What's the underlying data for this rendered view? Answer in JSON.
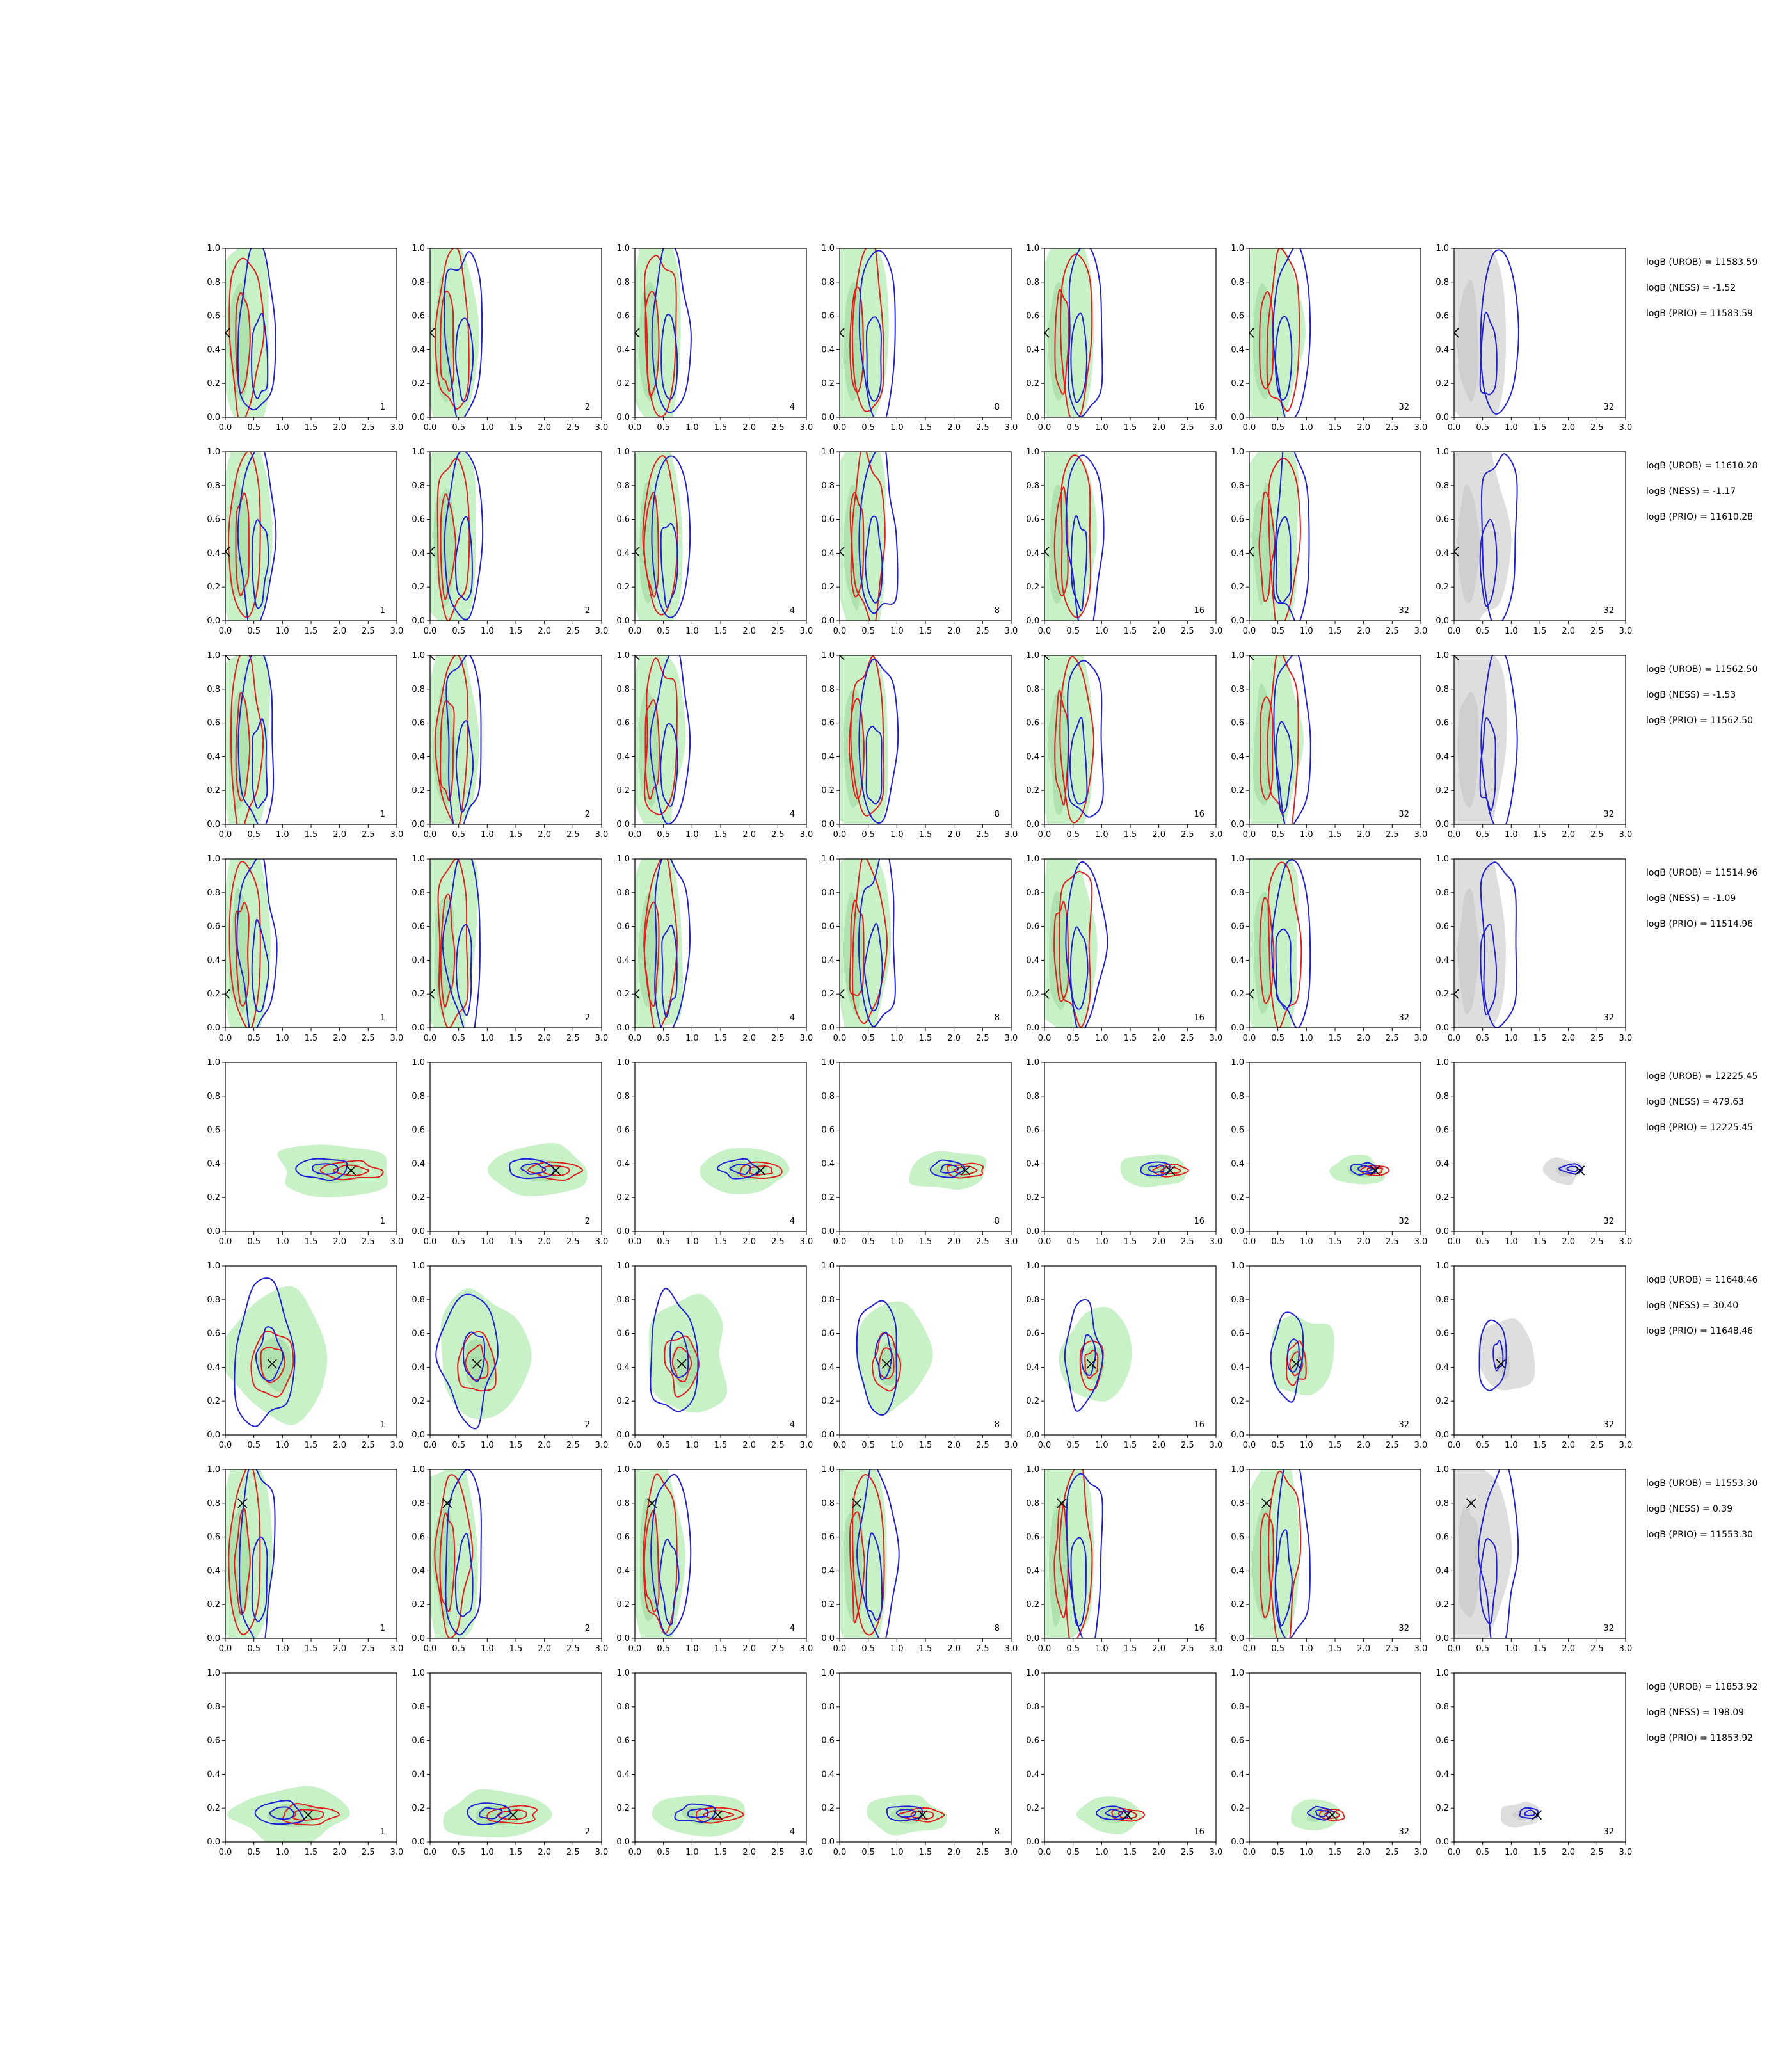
{
  "chart_data": {
    "type": "contour-grid",
    "x_ticks": [
      "0.0",
      "0.5",
      "1.0",
      "1.5",
      "2.0",
      "2.5",
      "3.0"
    ],
    "y_ticks": [
      "0.0",
      "0.2",
      "0.4",
      "0.6",
      "0.8",
      "1.0"
    ],
    "xlim": [
      0,
      3
    ],
    "ylim": [
      0,
      1
    ],
    "column_labels": [
      "1",
      "2",
      "4",
      "8",
      "16",
      "32",
      "32"
    ],
    "colors": {
      "red_contour": "#e0201c",
      "blue_contour": "#1f1fd6",
      "green_fill": "#b7ecb6",
      "green_fill_inner": "#9fd89e",
      "grey_fill": "#d3d3d3",
      "marker": "#000000"
    },
    "rows": [
      {
        "truth": [
          0.0,
          0.5
        ],
        "shape": "broad",
        "stats": [
          "logB (UROB) = 11583.59",
          "logB (NESS) = -1.52",
          "logB (PRIO) = 11583.59"
        ]
      },
      {
        "truth": [
          0.0,
          0.41
        ],
        "shape": "broad",
        "stats": [
          "logB (UROB) = 11610.28",
          "logB (NESS) = -1.17",
          "logB (PRIO) = 11610.28"
        ]
      },
      {
        "truth": [
          0.0,
          1.0
        ],
        "shape": "broad",
        "stats": [
          "logB (UROB) = 11562.50",
          "logB (NESS) = -1.53",
          "logB (PRIO) = 11562.50"
        ]
      },
      {
        "truth": [
          0.0,
          0.2
        ],
        "shape": "broad",
        "stats": [
          "logB (UROB) = 11514.96",
          "logB (NESS) = -1.09",
          "logB (PRIO) = 11514.96"
        ]
      },
      {
        "truth": [
          2.2,
          0.36
        ],
        "shape": "narrow",
        "stats": [
          "logB (UROB) = 12225.45",
          "logB (NESS) = 479.63",
          "logB (PRIO) = 12225.45"
        ]
      },
      {
        "truth": [
          0.82,
          0.42
        ],
        "shape": "mid",
        "stats": [
          "logB (UROB) = 11648.46",
          "logB (NESS) = 30.40",
          "logB (PRIO) = 11648.46"
        ]
      },
      {
        "truth": [
          0.3,
          0.8
        ],
        "shape": "broad",
        "stats": [
          "logB (UROB) = 11553.30",
          "logB (NESS) = 0.39",
          "logB (PRIO) = 11553.30"
        ]
      },
      {
        "truth": [
          1.45,
          0.16
        ],
        "shape": "narrow",
        "stats": [
          "logB (UROB) = 11853.92",
          "logB (NESS) = 198.09",
          "logB (PRIO) = 11853.92"
        ]
      }
    ]
  }
}
